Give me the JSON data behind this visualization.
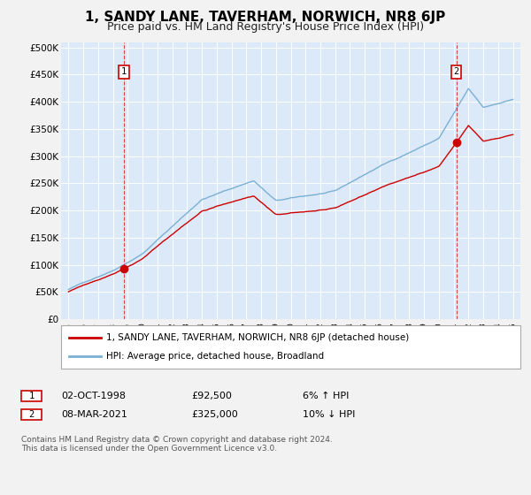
{
  "title": "1, SANDY LANE, TAVERHAM, NORWICH, NR8 6JP",
  "subtitle": "Price paid vs. HM Land Registry's House Price Index (HPI)",
  "legend_line1": "1, SANDY LANE, TAVERHAM, NORWICH, NR8 6JP (detached house)",
  "legend_line2": "HPI: Average price, detached house, Broadland",
  "sale1_label": "1",
  "sale1_date": "02-OCT-1998",
  "sale1_price": 92500,
  "sale1_price_str": "£92,500",
  "sale1_hpi_str": "6% ↑ HPI",
  "sale1_year": 1998.75,
  "sale2_label": "2",
  "sale2_date": "08-MAR-2021",
  "sale2_price": 325000,
  "sale2_price_str": "£325,000",
  "sale2_hpi_str": "10% ↓ HPI",
  "sale2_year": 2021.18,
  "ylabel_ticks": [
    0,
    50000,
    100000,
    150000,
    200000,
    250000,
    300000,
    350000,
    400000,
    450000,
    500000
  ],
  "ylabel_labels": [
    "£0",
    "£50K",
    "£100K",
    "£150K",
    "£200K",
    "£250K",
    "£300K",
    "£350K",
    "£400K",
    "£450K",
    "£500K"
  ],
  "background_color": "#dce9f8",
  "grid_color": "#ffffff",
  "red_line_color": "#cc0000",
  "blue_line_color": "#7ab0d4",
  "fig_bg_color": "#f2f2f2",
  "footer": "Contains HM Land Registry data © Crown copyright and database right 2024.\nThis data is licensed under the Open Government Licence v3.0.",
  "title_fontsize": 11,
  "subtitle_fontsize": 9
}
